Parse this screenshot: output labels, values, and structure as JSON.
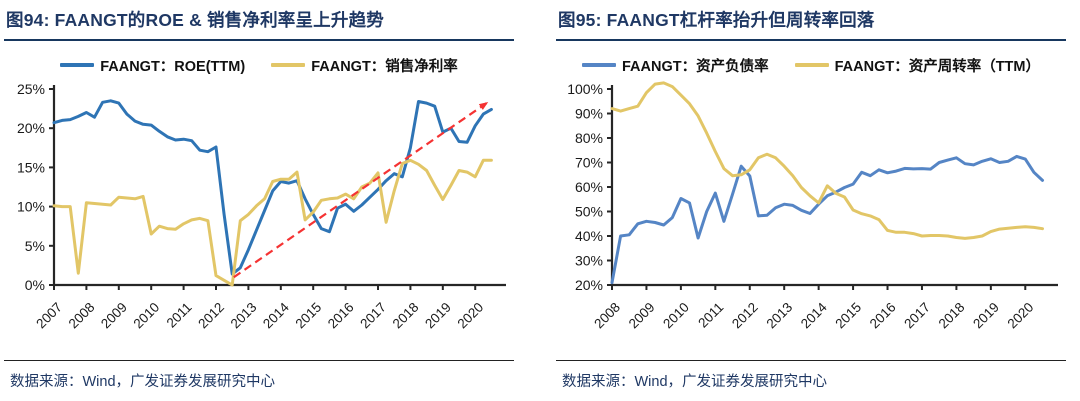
{
  "colors": {
    "navy": "#1F3864",
    "axis": "#262626",
    "left_blue": "#2E74B5",
    "right_blue": "#5585C5",
    "gold": "#E2C667",
    "arrow_red": "#F53333"
  },
  "panels": [
    {
      "title": "图94: FAANGT的ROE & 销售净利率呈上升趋势",
      "source": "数据来源：Wind，广发证券发展研究中心"
    },
    {
      "title": "图95: FAANGT杠杆率抬升但周转率回落",
      "source": "数据来源：Wind，广发证券发展研究中心"
    }
  ],
  "chart_data": [
    {
      "type": "line",
      "title": "图94: FAANGT的ROE & 销售净利率呈上升趋势",
      "x_unit": "quarter",
      "x_start_year": 2007,
      "x_tick_labels": [
        "2007",
        "2008",
        "2009",
        "2010",
        "2011",
        "2012",
        "2013",
        "2014",
        "2015",
        "2016",
        "2017",
        "2018",
        "2019",
        "2020"
      ],
      "ylim": [
        0,
        25
      ],
      "y_tick_step": 5,
      "y_tick_labels": [
        "0%",
        "5%",
        "10%",
        "15%",
        "20%",
        "25%"
      ],
      "grid": false,
      "legend_position": "top",
      "series": [
        {
          "name": "FAANGT：ROE(TTM)",
          "color": "#2E74B5",
          "values": [
            20.7,
            21.0,
            21.1,
            21.5,
            22.0,
            21.4,
            23.3,
            23.5,
            23.2,
            21.8,
            20.9,
            20.5,
            20.4,
            19.6,
            18.9,
            18.5,
            18.6,
            18.4,
            17.2,
            17.0,
            17.6,
            9.0,
            1.4,
            2.2,
            4.5,
            7.0,
            9.5,
            12.0,
            13.2,
            13.0,
            13.3,
            11.0,
            9.0,
            7.2,
            6.8,
            9.8,
            10.3,
            9.4,
            10.2,
            11.2,
            12.2,
            13.3,
            14.2,
            13.8,
            17.5,
            23.4,
            23.2,
            22.8,
            19.5,
            20.0,
            18.3,
            18.2,
            20.3,
            21.8,
            22.4
          ]
        },
        {
          "name": "FAANGT：销售净利率",
          "color": "#E2C667",
          "values": [
            10.1,
            10.0,
            10.0,
            1.5,
            10.5,
            10.4,
            10.3,
            10.2,
            11.2,
            11.1,
            11.0,
            11.3,
            6.5,
            7.5,
            7.2,
            7.1,
            7.8,
            8.3,
            8.5,
            8.2,
            1.2,
            0.6,
            0.0,
            8.2,
            9.0,
            10.1,
            11.0,
            13.2,
            13.5,
            13.5,
            14.4,
            8.3,
            9.3,
            10.8,
            11.0,
            11.1,
            11.6,
            11.0,
            12.5,
            13.0,
            14.3,
            8.0,
            12.0,
            15.5,
            15.9,
            15.4,
            14.6,
            12.7,
            10.9,
            12.7,
            14.6,
            14.4,
            13.8,
            15.9,
            15.9
          ]
        }
      ],
      "annotation_arrow": {
        "description": "red dashed upward trend arrow",
        "color": "#F53333",
        "style": "dashed",
        "from_year": 2012.55,
        "from_value": 1.0,
        "to_year": 2020.35,
        "to_value": 23.2
      }
    },
    {
      "type": "line",
      "title": "图95: FAANGT杠杆率抬升但周转率回落",
      "x_unit": "quarter",
      "x_start_year": 2008,
      "x_tick_labels": [
        "2008",
        "2009",
        "2010",
        "2011",
        "2012",
        "2013",
        "2014",
        "2015",
        "2016",
        "2017",
        "2018",
        "2019",
        "2020"
      ],
      "ylim": [
        20,
        100
      ],
      "y_tick_step": 10,
      "y_tick_labels": [
        "20%",
        "30%",
        "40%",
        "50%",
        "60%",
        "70%",
        "80%",
        "90%",
        "100%"
      ],
      "grid": false,
      "legend_position": "top",
      "series": [
        {
          "name": "FAANGT：资产负债率",
          "color": "#5585C5",
          "values": [
            21,
            40,
            40.5,
            45,
            46,
            45.5,
            44.5,
            47.5,
            55.3,
            53.5,
            39.2,
            50,
            57.5,
            46,
            57,
            68.5,
            64.5,
            48.2,
            48.5,
            51.5,
            53,
            52.5,
            50.5,
            49.2,
            53,
            56.4,
            57.9,
            59.8,
            61.2,
            66,
            64.6,
            67,
            65.8,
            66.5,
            67.6,
            67.4,
            67.5,
            67.3,
            70,
            71,
            71.9,
            69.5,
            69,
            70.5,
            71.5,
            70,
            70.5,
            72.5,
            71.4,
            66,
            62.7
          ]
        },
        {
          "name": "FAANGT：资产周转率（TTM）",
          "color": "#E2C667",
          "values": [
            92,
            91,
            92,
            93,
            98.5,
            102,
            102.5,
            101,
            97.5,
            94,
            89,
            82,
            74.5,
            67.5,
            64.6,
            65,
            67,
            71.9,
            73.4,
            71.9,
            68.5,
            64.6,
            59.8,
            56.4,
            53.5,
            60.5,
            57.4,
            55.9,
            50.6,
            49.1,
            48.2,
            46.7,
            42.3,
            41.5,
            41.5,
            41,
            40,
            40.2,
            40.2,
            40,
            39.4,
            39,
            39.4,
            40,
            41.8,
            42.8,
            43.2,
            43.5,
            43.8,
            43.5,
            43
          ]
        }
      ]
    }
  ]
}
